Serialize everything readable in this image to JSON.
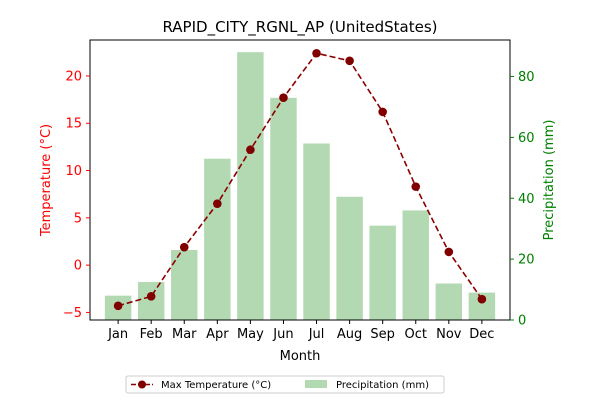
{
  "chart_data": {
    "type": "bar+line",
    "title": "RAPID_CITY_RGNL_AP (UnitedStates)",
    "xlabel": "Month",
    "ylabel_left": "Temperature (°C)",
    "ylabel_right": "Precipitation (mm)",
    "categories": [
      "Jan",
      "Feb",
      "Mar",
      "Apr",
      "May",
      "Jun",
      "Jul",
      "Aug",
      "Sep",
      "Oct",
      "Nov",
      "Dec"
    ],
    "series": [
      {
        "name": "Max Temperature (°C)",
        "type": "line",
        "axis": "left",
        "values": [
          -4.3,
          -3.3,
          1.9,
          6.5,
          12.2,
          17.7,
          22.4,
          21.6,
          16.2,
          8.3,
          1.4,
          -3.6
        ]
      },
      {
        "name": "Precipitation (mm)",
        "type": "bar",
        "axis": "right",
        "values": [
          8,
          12.5,
          23,
          53,
          88,
          73,
          58,
          40.5,
          31,
          36,
          12,
          9
        ]
      }
    ],
    "ylim_left": [
      -5.8,
      23.8
    ],
    "ylim_right": [
      0,
      92
    ],
    "yticks_left": [
      -5,
      0,
      5,
      10,
      15,
      20
    ],
    "yticks_right": [
      0,
      20,
      40,
      60,
      80
    ],
    "grid": false,
    "legend_position": "bottom-center",
    "colors": {
      "line": "#8b0000",
      "marker": "#800000",
      "bar": "#b3d9b3",
      "left_axis": "#ff0000",
      "right_axis": "#008000"
    }
  }
}
